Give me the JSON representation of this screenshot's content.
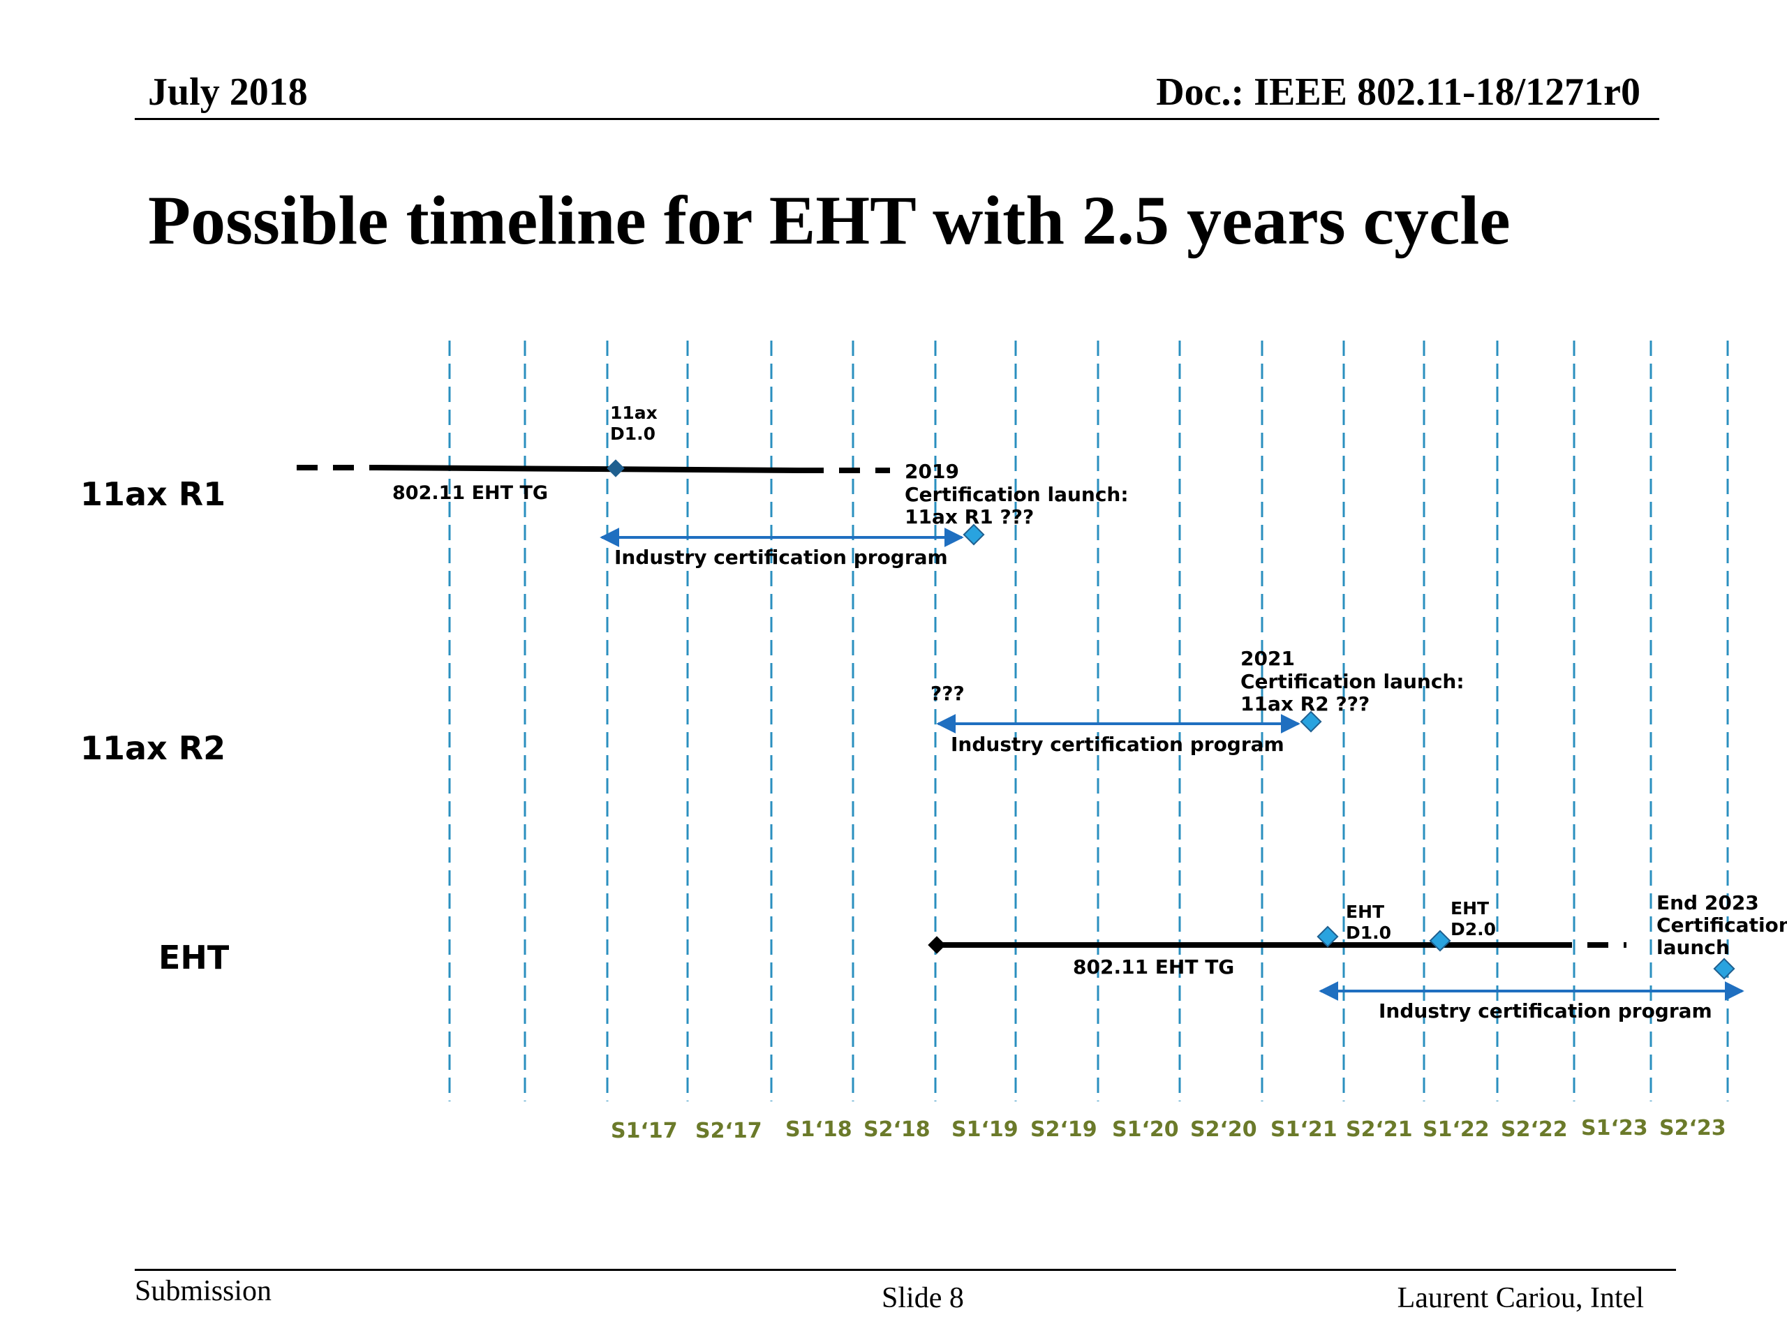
{
  "header": {
    "date": "July 2018",
    "doc": "Doc.: IEEE 802.11-18/1271r0"
  },
  "title": "Possible timeline for EHT with 2.5 years cycle",
  "rows": {
    "r1": "11ax R1",
    "r2": "11ax R2",
    "eht": "EHT"
  },
  "axis_labels": [
    "S1‘17",
    "S2‘17",
    "S1‘18",
    "S2‘18",
    "S1‘19",
    "S2‘19",
    "S1‘20",
    "S2‘20",
    "S1‘21",
    "S2‘21",
    "S1‘22",
    "S2‘22",
    "S1‘23",
    "S2‘23"
  ],
  "annotations": {
    "r1_tg": "802.11 EHT TG",
    "r1_d10_line1": "11ax",
    "r1_d10_line2": "D1.0",
    "r1_launch_line1": "2019",
    "r1_launch_line2": "Certification launch:",
    "r1_launch_line3": "11ax R1 ???",
    "r1_program": "Industry certification program",
    "r2_start": "???",
    "r2_launch_line1": "2021",
    "r2_launch_line2": "Certification launch:",
    "r2_launch_line3": "11ax R2 ???",
    "r2_program": "Industry certification program",
    "eht_d10_line1": "EHT",
    "eht_d10_line2": "D1.0",
    "eht_d20_line1": "EHT",
    "eht_d20_line2": "D2.0",
    "eht_launch_line1": "End 2023",
    "eht_launch_line2": "Certification",
    "eht_launch_line3": "launch",
    "eht_tg": "802.11 EHT TG",
    "eht_program": "Industry certification program"
  },
  "colors": {
    "grid": "#2a8fbf",
    "arrow": "#1f6fc0",
    "diamond": "#29a3df",
    "axis_text": "#6b7a2a",
    "bar": "#000000"
  },
  "footer": {
    "left": "Submission",
    "center": "Slide 8",
    "right": "Laurent Cariou, Intel"
  }
}
